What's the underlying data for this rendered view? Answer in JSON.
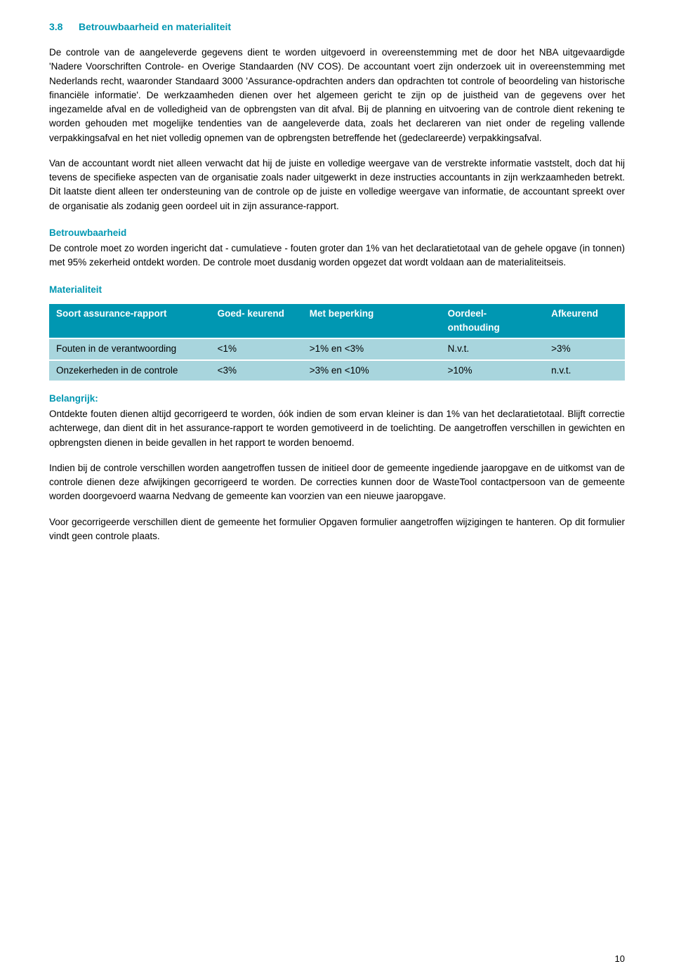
{
  "heading": {
    "number": "3.8",
    "title": "Betrouwbaarheid en materialiteit"
  },
  "para1": "De controle van de aangeleverde gegevens dient te worden uitgevoerd in overeenstemming met de door het NBA uitgevaardigde 'Nadere Voorschriften Controle- en Overige Standaarden (NV COS). De accountant voert zijn onderzoek uit in overeenstemming met Nederlands recht, waaronder Standaard 3000 'Assurance-opdrachten anders dan opdrachten tot controle of beoordeling van historische financiële informatie'. De werkzaamheden dienen over het algemeen gericht te zijn op de juistheid van de gegevens over het ingezamelde afval en de volledigheid van de opbrengsten van dit afval. Bij de planning en uitvoering van de controle dient rekening te worden gehouden met mogelijke tendenties van de aangeleverde data, zoals het declareren van niet onder de regeling vallende verpakkingsafval en het niet volledig opnemen van de opbrengsten betreffende het (gedeclareerde) verpakkingsafval.",
  "para2": "Van de accountant wordt niet alleen verwacht dat hij de juiste en volledige weergave van de verstrekte informatie vaststelt, doch dat hij tevens de specifieke aspecten van de organisatie zoals nader uitgewerkt in deze instructies accountants in zijn werkzaamheden betrekt. Dit laatste dient alleen ter ondersteuning van de controle op de juiste en volledige weergave van informatie, de accountant spreekt over de organisatie als zodanig geen oordeel uit in zijn assurance-rapport.",
  "betrouwbaarheid": {
    "title": "Betrouwbaarheid",
    "text": "De controle moet zo worden ingericht dat - cumulatieve - fouten groter dan 1% van het declaratietotaal van de gehele opgave (in tonnen) met 95% zekerheid ontdekt worden. De controle moet dusdanig worden opgezet dat wordt voldaan aan de materialiteitseis."
  },
  "materialiteit": {
    "title": "Materialiteit"
  },
  "table": {
    "headers": [
      "Soort assurance-rapport",
      "Goed-\nkeurend",
      "Met beperking",
      "Oordeel-\nonthouding",
      "Afkeurend"
    ],
    "rows": [
      [
        "Fouten in de verantwoording",
        "<1%",
        ">1% en <3%",
        "N.v.t.",
        ">3%"
      ],
      [
        "Onzekerheden in de controle",
        "<3%",
        ">3% en <10%",
        ">10%",
        "n.v.t."
      ]
    ],
    "header_bg": "#0097b2",
    "header_fg": "#ffffff",
    "cell_bg": "#a8d5dd"
  },
  "belangrijk": {
    "label": "Belangrijk:",
    "para1": "Ontdekte fouten dienen altijd gecorrigeerd te worden, óók indien de som ervan kleiner is dan 1% van het declaratietotaal. Blijft correctie achterwege, dan dient dit in het assurance-rapport te worden gemotiveerd in de toelichting. De aangetroffen verschillen in gewichten en opbrengsten dienen in beide gevallen in het rapport te worden benoemd.",
    "para2": "Indien bij de controle verschillen worden aangetroffen tussen de initieel door de gemeente ingediende jaaropgave en de uitkomst van de controle dienen deze afwijkingen gecorrigeerd te worden.  De correcties kunnen door de WasteTool contactpersoon van de gemeente worden doorgevoerd waarna Nedvang de gemeente kan voorzien van een nieuwe jaaropgave.",
    "para3": "Voor gecorrigeerde verschillen dient de gemeente het formulier Opgaven formulier aangetroffen wijzigingen te hanteren. Op dit formulier vindt geen controle plaats."
  },
  "page_number": "10"
}
